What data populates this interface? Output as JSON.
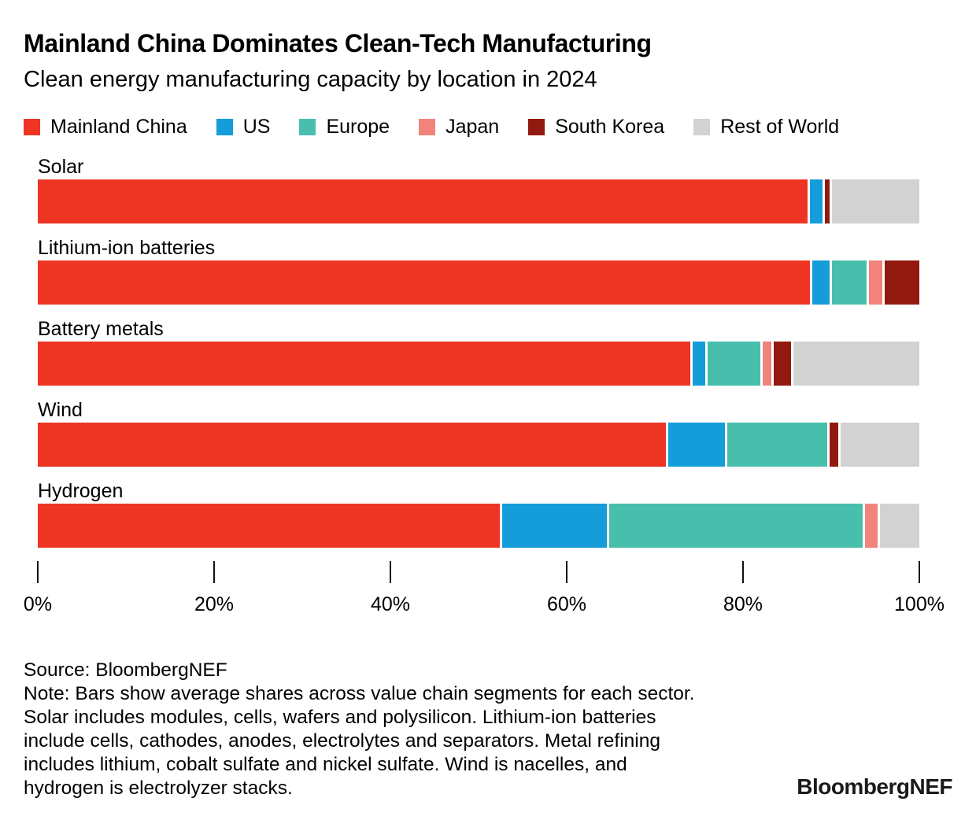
{
  "header": {
    "title": "Mainland China Dominates Clean-Tech Manufacturing",
    "subtitle": "Clean energy manufacturing capacity by location in 2024"
  },
  "legend": {
    "items": [
      {
        "label": "Mainland China",
        "color": "#ee3524"
      },
      {
        "label": "US",
        "color": "#149dd9"
      },
      {
        "label": "Europe",
        "color": "#47bfac"
      },
      {
        "label": "Japan",
        "color": "#f2837b"
      },
      {
        "label": "South Korea",
        "color": "#911910"
      },
      {
        "label": "Rest of World",
        "color": "#d2d2d2"
      }
    ]
  },
  "chart_data": {
    "type": "bar",
    "orientation": "horizontal",
    "stacked": true,
    "unit": "%",
    "title": "Mainland China Dominates Clean-Tech Manufacturing",
    "subtitle": "Clean energy manufacturing capacity by location in 2024",
    "categories": [
      "Solar",
      "Lithium-ion batteries",
      "Battery metals",
      "Wind",
      "Hydrogen"
    ],
    "series": [
      {
        "name": "Mainland China",
        "color": "#ee3524",
        "values": [
          88,
          88.5,
          75,
          72,
          53
        ]
      },
      {
        "name": "US",
        "color": "#149dd9",
        "values": [
          1.5,
          2,
          1.5,
          6.5,
          12
        ]
      },
      {
        "name": "Europe",
        "color": "#47bfac",
        "values": [
          0,
          4,
          6,
          11.5,
          29
        ]
      },
      {
        "name": "Japan",
        "color": "#f2837b",
        "values": [
          0,
          1.5,
          1,
          0,
          1.5
        ]
      },
      {
        "name": "South Korea",
        "color": "#911910",
        "values": [
          0.5,
          4,
          2,
          1,
          0
        ]
      },
      {
        "name": "Rest of World",
        "color": "#d2d2d2",
        "values": [
          10,
          0,
          14.5,
          9,
          4.5
        ]
      }
    ],
    "xlim": [
      0,
      100
    ],
    "x_ticks": [
      "0%",
      "20%",
      "40%",
      "60%",
      "80%",
      "100%"
    ],
    "x_tick_values": [
      0,
      20,
      40,
      60,
      80,
      100
    ],
    "grid": false,
    "legend_position": "top"
  },
  "footer": {
    "source": "Source: BloombergNEF",
    "note_lines": [
      "Note: Bars show average shares across value chain segments for each sector.",
      "Solar includes modules, cells, wafers and polysilicon. Lithium-ion batteries",
      "include cells, cathodes, anodes, electrolytes and separators. Metal refining",
      "includes lithium, cobalt sulfate and nickel sulfate. Wind is nacelles, and",
      "hydrogen is electrolyzer stacks."
    ],
    "logo": "BloombergNEF"
  }
}
